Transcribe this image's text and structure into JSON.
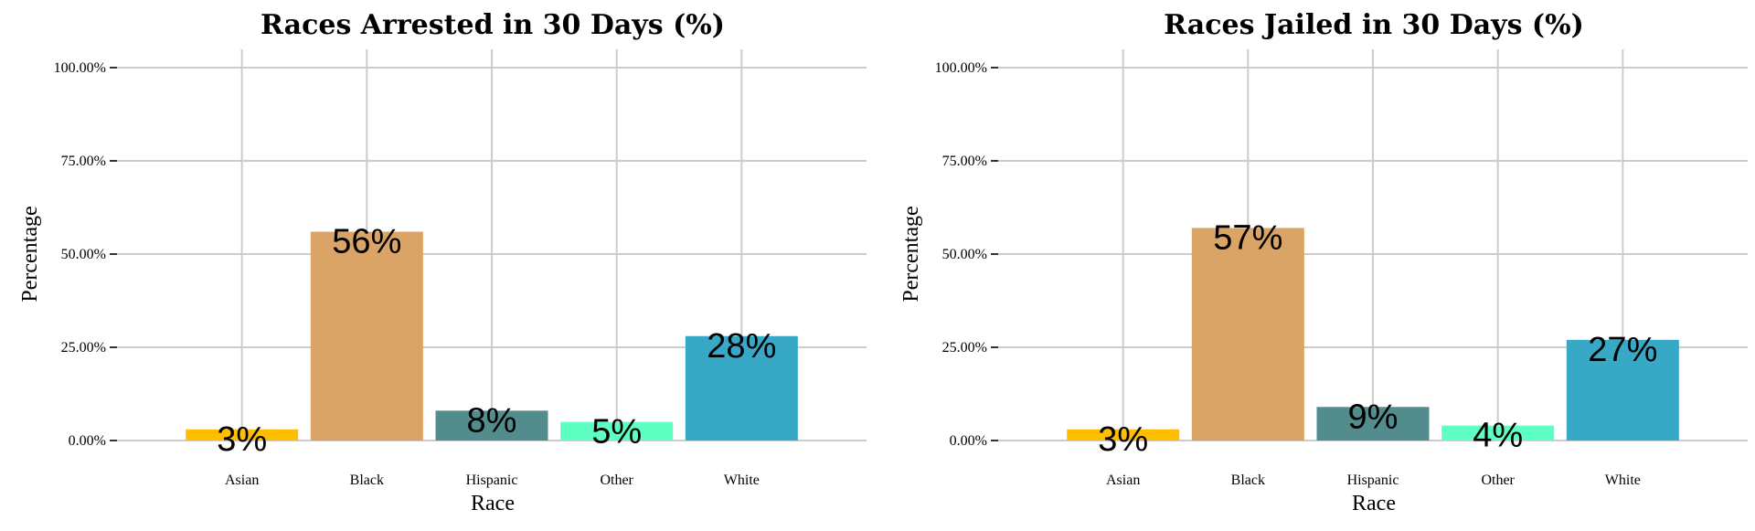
{
  "chart_data": [
    {
      "type": "bar",
      "title": "Races Arrested in 30 Days (%)",
      "xlabel": "Race",
      "ylabel": "Percentage",
      "categories": [
        "Asian",
        "Black",
        "Hispanic",
        "Other",
        "White"
      ],
      "values": [
        3,
        56,
        8,
        5,
        28
      ],
      "data_labels": [
        "3%",
        "56%",
        "8%",
        "5%",
        "28%"
      ],
      "colors": [
        "#FFBF00",
        "#D9A465",
        "#538C8C",
        "#5EFFC2",
        "#37A8C5"
      ],
      "ylim": [
        0,
        100
      ],
      "yticks": [
        0,
        25,
        50,
        75,
        100
      ],
      "ytick_labels": [
        "0.00%",
        "25.00%",
        "50.00%",
        "75.00%",
        "100.00%"
      ],
      "grid": true
    },
    {
      "type": "bar",
      "title": "Races Jailed in 30 Days (%)",
      "xlabel": "Race",
      "ylabel": "Percentage",
      "categories": [
        "Asian",
        "Black",
        "Hispanic",
        "Other",
        "White"
      ],
      "values": [
        3,
        57,
        9,
        4,
        27
      ],
      "data_labels": [
        "3%",
        "57%",
        "9%",
        "4%",
        "27%"
      ],
      "colors": [
        "#FFBF00",
        "#D9A465",
        "#538C8C",
        "#5EFFC2",
        "#37A8C5"
      ],
      "ylim": [
        0,
        100
      ],
      "yticks": [
        0,
        25,
        50,
        75,
        100
      ],
      "ytick_labels": [
        "0.00%",
        "25.00%",
        "50.00%",
        "75.00%",
        "100.00%"
      ],
      "grid": true
    }
  ]
}
